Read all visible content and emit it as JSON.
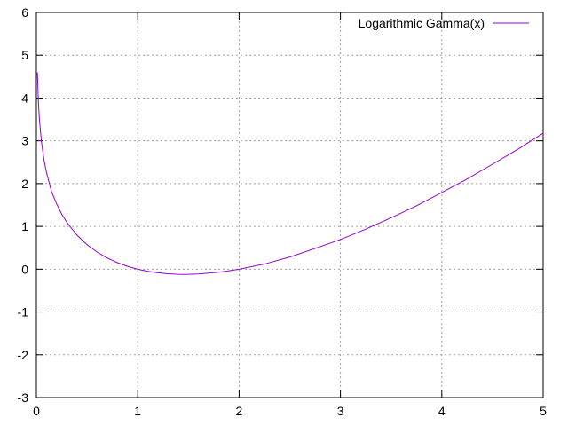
{
  "chart_data": {
    "type": "line",
    "title": "",
    "xlabel": "",
    "ylabel": "",
    "xlim": [
      0,
      5
    ],
    "ylim": [
      -3,
      6
    ],
    "grid": true,
    "legend_position": "top-right",
    "x_ticks": [
      0,
      1,
      2,
      3,
      4,
      5
    ],
    "y_ticks": [
      -3,
      -2,
      -1,
      0,
      1,
      2,
      3,
      4,
      5,
      6
    ],
    "series": [
      {
        "name": "Logarithmic Gamma(x)",
        "color": "#9400d3",
        "x": [
          0.01,
          0.02,
          0.03,
          0.05,
          0.075,
          0.1,
          0.15,
          0.2,
          0.25,
          0.3,
          0.4,
          0.5,
          0.6,
          0.7,
          0.8,
          0.9,
          1.0,
          1.1,
          1.2,
          1.3,
          1.4,
          1.4616,
          1.5,
          1.6,
          1.7,
          1.8,
          1.9,
          2.0,
          2.25,
          2.5,
          2.75,
          3.0,
          3.25,
          3.5,
          3.75,
          4.0,
          4.25,
          4.5,
          4.75,
          5.0
        ],
        "y": [
          4.599,
          3.902,
          3.493,
          2.975,
          2.557,
          2.253,
          1.809,
          1.524,
          1.288,
          1.096,
          0.797,
          0.572,
          0.398,
          0.261,
          0.152,
          0.066,
          0.0,
          -0.049,
          -0.085,
          -0.108,
          -0.12,
          -0.122,
          -0.121,
          -0.112,
          -0.091,
          -0.071,
          -0.038,
          0.0,
          0.12,
          0.285,
          0.485,
          0.693,
          0.937,
          1.201,
          1.48,
          1.792,
          2.107,
          2.454,
          2.803,
          3.178
        ]
      }
    ]
  }
}
